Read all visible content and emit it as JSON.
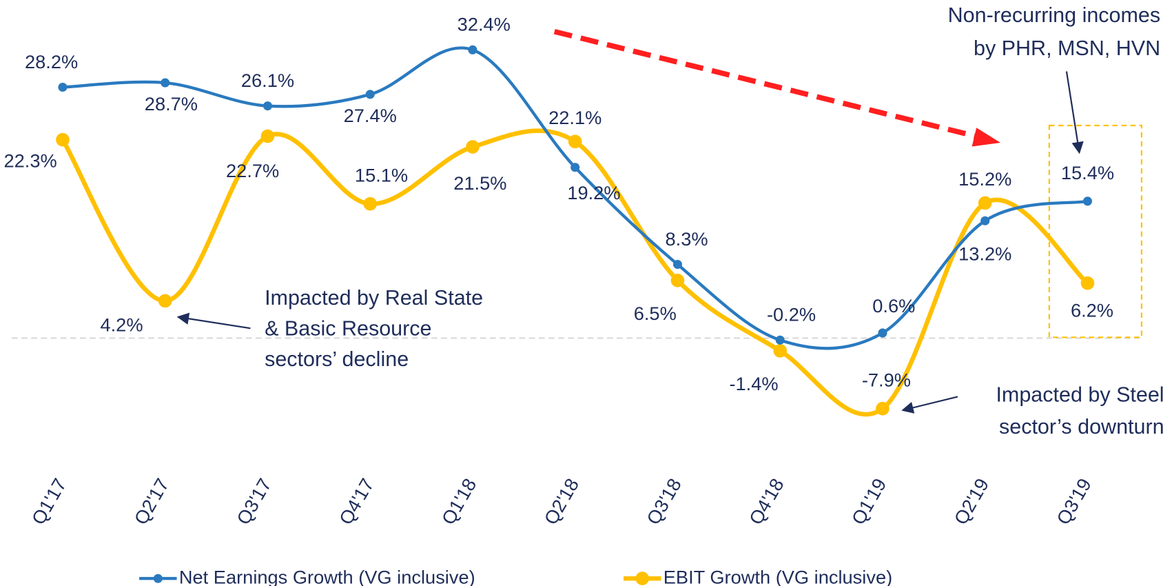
{
  "chart_data": {
    "type": "line",
    "categories": [
      "Q1'17",
      "Q2'17",
      "Q3'17",
      "Q4'17",
      "Q1'18",
      "Q2'18",
      "Q3'18",
      "Q4'18",
      "Q1'19",
      "Q2'19",
      "Q3'19"
    ],
    "series": [
      {
        "name": "Net Earnings Growth (VG inclusive)",
        "color": "#2a7abf",
        "values": [
          28.2,
          28.7,
          26.1,
          27.4,
          32.4,
          19.2,
          8.3,
          -0.2,
          0.6,
          13.2,
          15.4
        ],
        "value_labels": [
          "28.2%",
          "28.7%",
          "26.1%",
          "27.4%",
          "32.4%",
          "19.2%",
          "8.3%",
          "-0.2%",
          "0.6%",
          "13.2%",
          "15.4%"
        ]
      },
      {
        "name": "EBIT Growth (VG inclusive)",
        "color": "#ffc000",
        "values": [
          22.3,
          4.2,
          22.7,
          15.1,
          21.5,
          22.1,
          6.5,
          -1.4,
          -7.9,
          15.2,
          6.2
        ],
        "value_labels": [
          "22.3%",
          "4.2%",
          "22.7%",
          "15.1%",
          "21.5%",
          "22.1%",
          "6.5%",
          "-1.4%",
          "-7.9%",
          "15.2%",
          "6.2%"
        ]
      }
    ],
    "ylim": [
      -17,
      38
    ],
    "annotations": [
      {
        "lines": [
          "Non-recurring incomes",
          "by PHR, MSN, HVN"
        ]
      },
      {
        "lines": [
          "Impacted by Real State",
          "& Basic Resource",
          "sectors’ decline"
        ]
      },
      {
        "lines": [
          "Impacted by Steel",
          "sector’s downturn"
        ]
      }
    ]
  }
}
